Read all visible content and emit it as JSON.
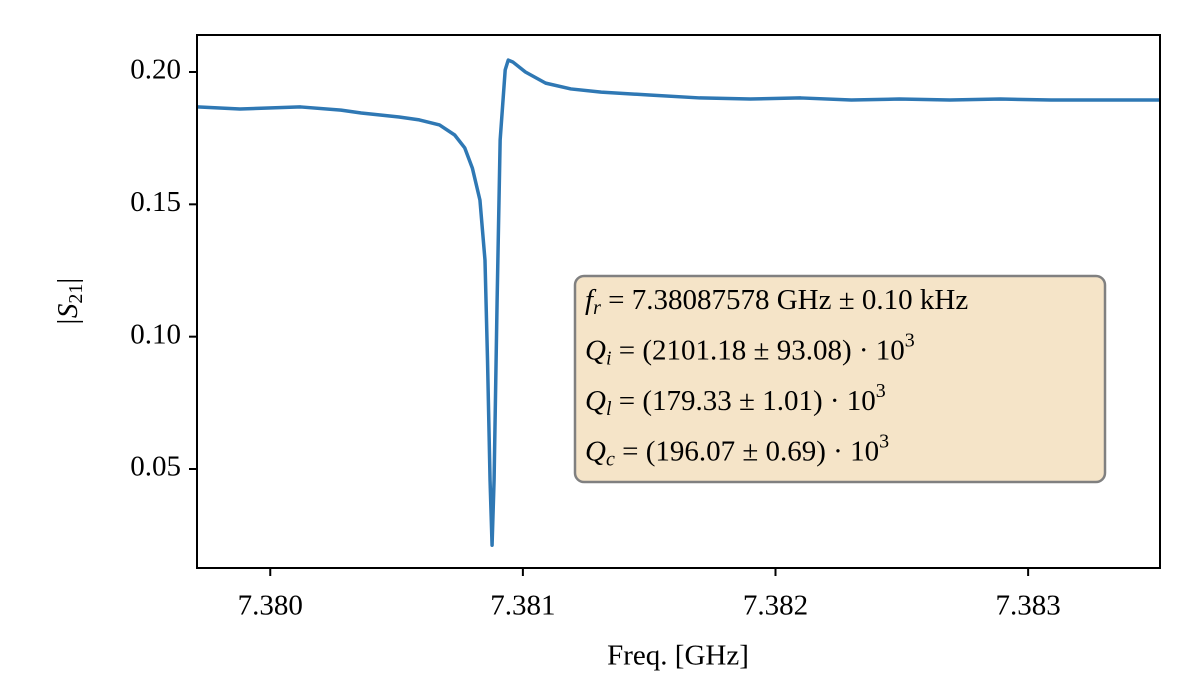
{
  "chart_data": {
    "type": "line",
    "x_label": "Freq. [GHz]",
    "y_label": {
      "text": "|S",
      "subscript": "21",
      "end": "|"
    },
    "x": [
      7.37971,
      7.37988,
      7.38012,
      7.38028,
      7.38036,
      7.38044,
      7.38051,
      7.38059,
      7.38067,
      7.38073,
      7.38077,
      7.3808,
      7.38083,
      7.38085,
      7.38086,
      7.38087,
      7.380878,
      7.380886,
      7.380898,
      7.38091,
      7.38093,
      7.380942,
      7.38096,
      7.38101,
      7.38109,
      7.38119,
      7.38131,
      7.3815,
      7.3817,
      7.3819,
      7.3821,
      7.3823,
      7.38249,
      7.38269,
      7.38289,
      7.38309,
      7.38328,
      7.38352
    ],
    "series": [
      {
        "color": "#2f78b4",
        "values": [
          0.1868,
          0.186,
          0.1868,
          0.1856,
          0.1845,
          0.1837,
          0.183,
          0.1819,
          0.18,
          0.1762,
          0.1713,
          0.1637,
          0.1516,
          0.1289,
          0.0912,
          0.0458,
          0.0212,
          0.0458,
          0.1138,
          0.1743,
          0.2008,
          0.2045,
          0.2038,
          0.2,
          0.1958,
          0.1936,
          0.1924,
          0.1913,
          0.1902,
          0.1898,
          0.1902,
          0.1894,
          0.1898,
          0.1894,
          0.1898,
          0.1894,
          0.1894,
          0.1894
        ]
      }
    ],
    "xlim": [
      7.37971,
      7.383522
    ],
    "ylim": [
      0.01259,
      0.21398
    ],
    "xticks": [
      {
        "value": 7.38,
        "label": "7.380"
      },
      7.381,
      7.382,
      7.383
    ],
    "yticks": [
      0.05,
      {
        "value": 0.1,
        "label": "0.10"
      },
      0.15,
      {
        "value": 0.2,
        "label": "0.20"
      }
    ],
    "annotation": [
      {
        "symbol": "f",
        "subscript": "r",
        "expression": " = 7.38087578 GHz ± 0.10 kHz"
      },
      {
        "symbol": "Q",
        "subscript": "i",
        "expression": " = (2101.18 ± 93.08) · 10",
        "superscript": "3"
      },
      {
        "symbol": "Q",
        "subscript": "l",
        "expression": " = (179.33 ± 1.01) · 10",
        "superscript": "3"
      },
      {
        "symbol": "Q",
        "subscript": "c",
        "expression": " = (196.07 ± 0.69) · 10",
        "superscript": "3"
      }
    ]
  }
}
